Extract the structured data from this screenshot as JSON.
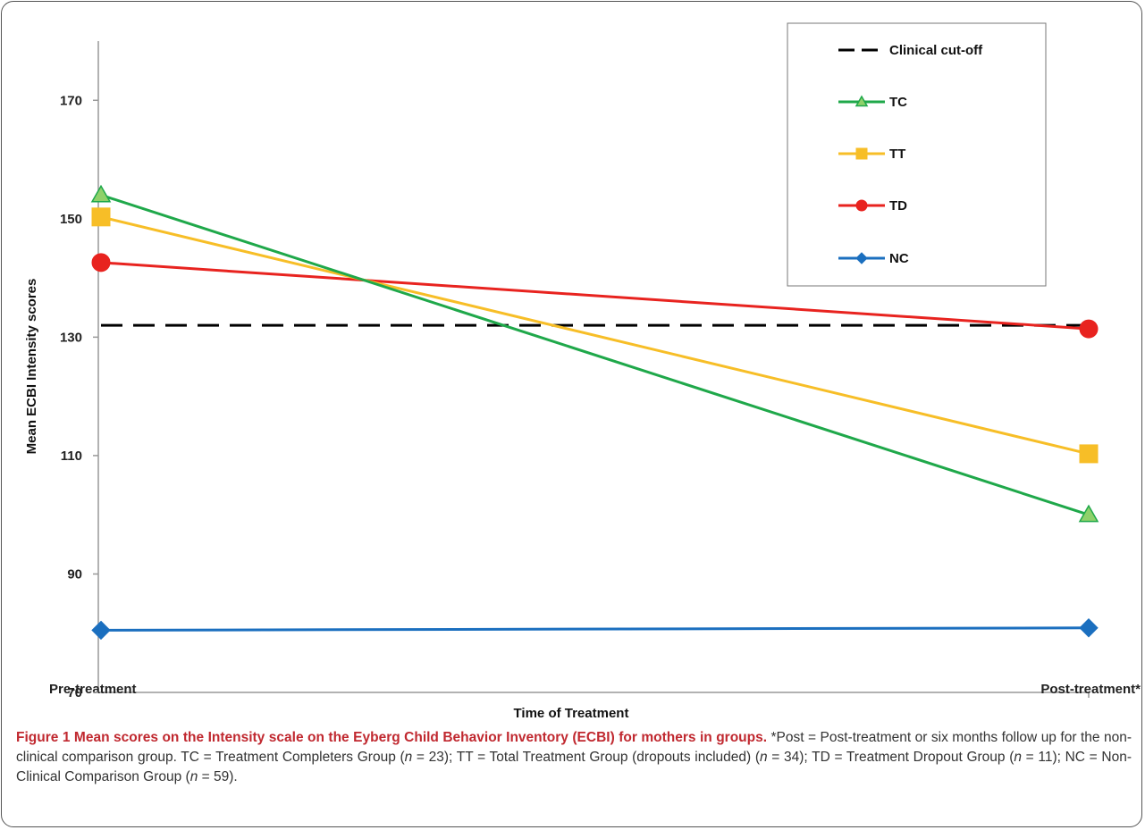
{
  "chart_data": {
    "type": "line",
    "title": "",
    "xlabel": "Time of Treatment",
    "ylabel": "Mean ECBI Intensity scores",
    "categories": [
      "Pre-treatment",
      "Post-treatment*"
    ],
    "ylim": [
      70,
      180
    ],
    "yticks": [
      70,
      90,
      110,
      130,
      150,
      170
    ],
    "grid": false,
    "legend_position": "top-right",
    "series": [
      {
        "name": "Clinical cut-off",
        "values": [
          132,
          132
        ],
        "color": "#000000",
        "style": "dashed",
        "marker": "none"
      },
      {
        "name": "TC",
        "values": [
          154,
          100
        ],
        "color": "#1fa84a",
        "marker_fill": "#8fd16a",
        "marker": "triangle"
      },
      {
        "name": "TT",
        "values": [
          150.3,
          110.3
        ],
        "color": "#f7be27",
        "marker_fill": "#f7be27",
        "marker": "square"
      },
      {
        "name": "TD",
        "values": [
          142.6,
          131.4
        ],
        "color": "#e8231f",
        "marker_fill": "#e8231f",
        "marker": "circle"
      },
      {
        "name": "NC",
        "values": [
          80.5,
          80.9
        ],
        "color": "#1b6fbf",
        "marker_fill": "#1b6fbf",
        "marker": "diamond"
      }
    ]
  },
  "caption": {
    "figure_label": "Figure 1",
    "title": "Mean scores on the Intensity scale on the Eyberg Child Behavior Inventory (ECBI) for mothers in groups.",
    "part1": " *Post = Post-treatment or six months follow up for the non-clinical comparison group. TC = Treatment Completers Group (",
    "n1_label": "n",
    "n1_value": " = 23); TT = Total Treatment Group (dropouts included) (",
    "n2_label": "n",
    "n2_value": " = 34); TD = Treatment Dropout Group (",
    "n3_label": "n",
    "n3_value": " = 11); NC = Non-Clinical Comparison Group (",
    "n4_label": "n",
    "n4_value": " = 59)."
  }
}
